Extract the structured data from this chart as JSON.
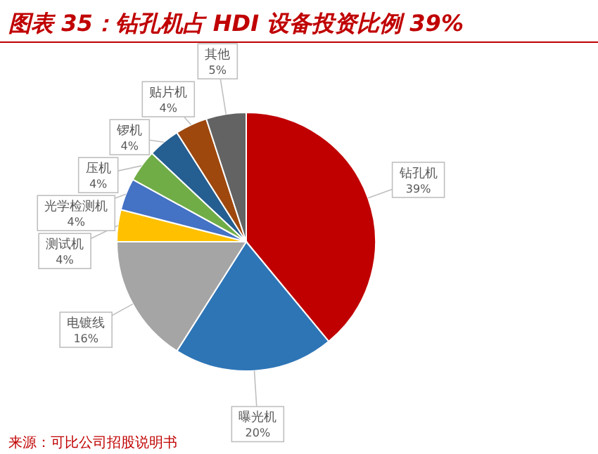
{
  "chart_data": {
    "type": "pie",
    "title": "图表 35：钻孔机占 HDI 设备投资比例 39%",
    "categories": [
      "钻孔机",
      "曝光机",
      "电镀线",
      "测试机",
      "光学检测机",
      "压机",
      "锣机",
      "贴片机",
      "其他"
    ],
    "values": [
      39,
      20,
      16,
      4,
      4,
      4,
      4,
      4,
      5
    ],
    "value_labels": [
      "39%",
      "20%",
      "16%",
      "4%",
      "4%",
      "4%",
      "4%",
      "4%",
      "5%"
    ],
    "colors": [
      "#c00000",
      "#2e75b6",
      "#a5a5a5",
      "#ffc000",
      "#4472c4",
      "#70ad47",
      "#255e91",
      "#9e480e",
      "#636363"
    ],
    "annotations": [
      "来源：可比公司招股说明书"
    ]
  }
}
